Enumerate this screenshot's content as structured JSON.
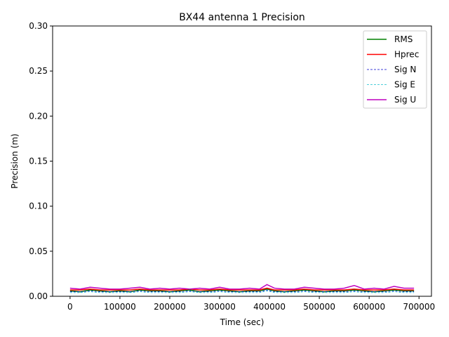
{
  "chart_data": {
    "type": "line",
    "title": "BX44 antenna 1 Precision",
    "xlabel": "Time (sec)",
    "ylabel": "Precision (m)",
    "xlim": [
      -35000,
      725000
    ],
    "ylim": [
      0,
      0.3
    ],
    "xticks": [
      0,
      100000,
      200000,
      300000,
      400000,
      500000,
      600000,
      700000
    ],
    "xtick_labels": [
      "0",
      "100000",
      "200000",
      "300000",
      "400000",
      "500000",
      "600000",
      "700000"
    ],
    "yticks": [
      0.0,
      0.05,
      0.1,
      0.15,
      0.2,
      0.25,
      0.3
    ],
    "ytick_labels": [
      "0.00",
      "0.05",
      "0.10",
      "0.15",
      "0.20",
      "0.25",
      "0.30"
    ],
    "grid": false,
    "legend_position": "top-right",
    "x": [
      0,
      20000,
      40000,
      60000,
      80000,
      100000,
      120000,
      140000,
      160000,
      180000,
      200000,
      220000,
      240000,
      260000,
      280000,
      300000,
      320000,
      340000,
      360000,
      380000,
      395000,
      410000,
      430000,
      450000,
      470000,
      490000,
      510000,
      530000,
      550000,
      570000,
      590000,
      610000,
      630000,
      650000,
      670000,
      690000
    ],
    "series": [
      {
        "name": "RMS",
        "color": "#008000",
        "style": "solid",
        "width": 1.5,
        "values": [
          0.006,
          0.005,
          0.007,
          0.006,
          0.005,
          0.006,
          0.005,
          0.007,
          0.006,
          0.006,
          0.005,
          0.006,
          0.007,
          0.005,
          0.006,
          0.007,
          0.006,
          0.005,
          0.006,
          0.006,
          0.008,
          0.006,
          0.005,
          0.006,
          0.007,
          0.006,
          0.005,
          0.006,
          0.006,
          0.007,
          0.006,
          0.005,
          0.006,
          0.007,
          0.006,
          0.006
        ]
      },
      {
        "name": "Hprec",
        "color": "#ff0000",
        "style": "solid",
        "width": 1.5,
        "values": [
          0.007,
          0.007,
          0.008,
          0.007,
          0.007,
          0.007,
          0.007,
          0.008,
          0.007,
          0.007,
          0.007,
          0.007,
          0.008,
          0.007,
          0.007,
          0.008,
          0.007,
          0.007,
          0.007,
          0.007,
          0.009,
          0.007,
          0.007,
          0.007,
          0.008,
          0.007,
          0.007,
          0.007,
          0.007,
          0.008,
          0.007,
          0.007,
          0.007,
          0.008,
          0.007,
          0.007
        ]
      },
      {
        "name": "Sig N",
        "color": "#0000cc",
        "style": "dashed",
        "width": 0.8,
        "values": [
          0.005,
          0.005,
          0.006,
          0.005,
          0.005,
          0.005,
          0.005,
          0.006,
          0.005,
          0.005,
          0.005,
          0.005,
          0.006,
          0.005,
          0.005,
          0.006,
          0.005,
          0.005,
          0.005,
          0.005,
          0.007,
          0.005,
          0.005,
          0.005,
          0.006,
          0.005,
          0.005,
          0.005,
          0.005,
          0.006,
          0.005,
          0.005,
          0.005,
          0.006,
          0.005,
          0.005
        ]
      },
      {
        "name": "Sig E",
        "color": "#17becf",
        "style": "dashed",
        "width": 0.8,
        "values": [
          0.004,
          0.004,
          0.005,
          0.004,
          0.004,
          0.004,
          0.004,
          0.005,
          0.004,
          0.004,
          0.004,
          0.004,
          0.005,
          0.004,
          0.004,
          0.005,
          0.004,
          0.004,
          0.004,
          0.004,
          0.006,
          0.004,
          0.004,
          0.004,
          0.005,
          0.004,
          0.004,
          0.004,
          0.004,
          0.005,
          0.004,
          0.004,
          0.004,
          0.005,
          0.004,
          0.004
        ]
      },
      {
        "name": "Sig U",
        "color": "#bf00bf",
        "style": "solid",
        "width": 1.5,
        "values": [
          0.009,
          0.008,
          0.01,
          0.009,
          0.008,
          0.008,
          0.009,
          0.01,
          0.008,
          0.009,
          0.008,
          0.009,
          0.008,
          0.009,
          0.008,
          0.01,
          0.008,
          0.008,
          0.009,
          0.008,
          0.013,
          0.009,
          0.008,
          0.008,
          0.01,
          0.009,
          0.008,
          0.008,
          0.009,
          0.012,
          0.008,
          0.009,
          0.008,
          0.011,
          0.009,
          0.009
        ]
      }
    ]
  }
}
